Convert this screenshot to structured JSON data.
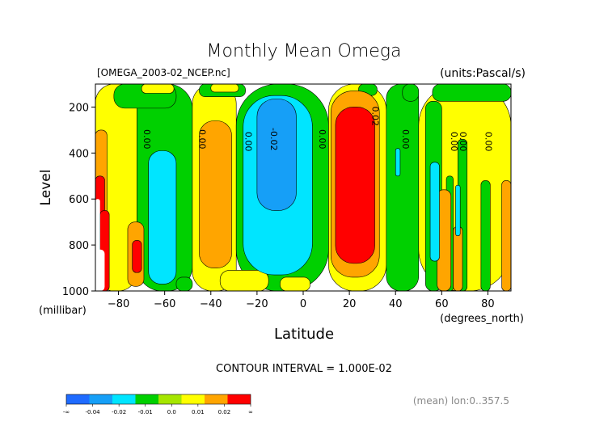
{
  "chart_data": {
    "type": "heatmap",
    "title": "Monthly Mean Omega",
    "subtitle_left": "[OMEGA_2003-02_NCEP.nc]",
    "subtitle_right": "(units:Pascal/s)",
    "xlabel": "Latitude",
    "x_unit_label": "(degrees_north)",
    "ylabel": "Level",
    "y_unit_label": "(millibar)",
    "xlim": [
      -90,
      90
    ],
    "ylim": [
      1000,
      100
    ],
    "x_ticks": [
      -80,
      -60,
      -40,
      -20,
      0,
      20,
      40,
      60,
      80
    ],
    "y_ticks": [
      200,
      400,
      600,
      800,
      1000
    ],
    "contour_interval_text": "CONTOUR INTERVAL = 1.000E-02",
    "note": "(mean) lon:0..357.5",
    "legend": {
      "placement": "bottom-left",
      "colors": [
        "#1f6bff",
        "#169ff7",
        "#00e5ff",
        "#00d000",
        "#a6e600",
        "#ffff00",
        "#ffa500",
        "#ff0000"
      ],
      "labels": [
        "-∞",
        "-0.04",
        "-0.02",
        "-0.01",
        "0.0",
        "0.01",
        "0.02",
        "∞"
      ]
    },
    "contour_labels": [
      {
        "text": "0.00",
        "lat": -69,
        "lev": 340
      },
      {
        "text": "0.00",
        "lat": -45,
        "lev": 340
      },
      {
        "text": "0.00",
        "lat": -25,
        "lev": 350
      },
      {
        "text": "-0.02",
        "lat": -14,
        "lev": 340
      },
      {
        "text": "0.00",
        "lat": 7,
        "lev": 340
      },
      {
        "text": "0.02",
        "lat": 30,
        "lev": 240
      },
      {
        "text": "0.00",
        "lat": 43,
        "lev": 340
      },
      {
        "text": "0.00",
        "lat": 64,
        "lev": 350
      },
      {
        "text": "0.00",
        "lat": 68,
        "lev": 350
      },
      {
        "text": "0.00",
        "lat": 79,
        "lev": 350
      }
    ],
    "regions": [
      {
        "v": 0.005,
        "x": [
          -90,
          -72
        ],
        "y": [
          100,
          1000
        ]
      },
      {
        "v": -0.005,
        "x": [
          -72,
          -48
        ],
        "y": [
          100,
          1000
        ]
      },
      {
        "v": 0.005,
        "x": [
          -48,
          -29
        ],
        "y": [
          100,
          1000
        ]
      },
      {
        "v": -0.005,
        "x": [
          -29,
          11
        ],
        "y": [
          100,
          1000
        ]
      },
      {
        "v": 0.005,
        "x": [
          11,
          36
        ],
        "y": [
          100,
          1000
        ]
      },
      {
        "v": -0.005,
        "x": [
          36,
          50
        ],
        "y": [
          100,
          1000
        ]
      },
      {
        "v": 0.005,
        "x": [
          50,
          90
        ],
        "y": [
          100,
          1000
        ]
      },
      {
        "v": -0.005,
        "x": [
          -82,
          -55
        ],
        "y": [
          100,
          205
        ]
      },
      {
        "v": 0.005,
        "x": [
          -70,
          -56
        ],
        "y": [
          100,
          140
        ]
      },
      {
        "v": -0.005,
        "x": [
          -45,
          -25
        ],
        "y": [
          100,
          155
        ]
      },
      {
        "v": 0.005,
        "x": [
          -40,
          -28
        ],
        "y": [
          100,
          135
        ]
      },
      {
        "v": -0.005,
        "x": [
          24,
          32
        ],
        "y": [
          100,
          150
        ]
      },
      {
        "v": -0.005,
        "x": [
          43,
          50
        ],
        "y": [
          100,
          175
        ]
      },
      {
        "v": 0.005,
        "x": [
          -36,
          -15
        ],
        "y": [
          910,
          1000
        ]
      },
      {
        "v": 0.005,
        "x": [
          -10,
          3
        ],
        "y": [
          940,
          1000
        ]
      },
      {
        "v": -0.005,
        "x": [
          -55,
          -48
        ],
        "y": [
          940,
          1000
        ]
      },
      {
        "v": -0.005,
        "x": [
          56,
          90
        ],
        "y": [
          100,
          175
        ]
      },
      {
        "v": -0.005,
        "x": [
          53,
          60
        ],
        "y": [
          175,
          1000
        ]
      },
      {
        "v": -0.005,
        "x": [
          62,
          65
        ],
        "y": [
          500,
          1000
        ]
      },
      {
        "v": -0.005,
        "x": [
          67,
          71
        ],
        "y": [
          340,
          1000
        ]
      },
      {
        "v": -0.005,
        "x": [
          77,
          81
        ],
        "y": [
          520,
          1000
        ]
      },
      {
        "v": 0.015,
        "x": [
          -90,
          -85
        ],
        "y": [
          300,
          1000
        ]
      },
      {
        "v": 0.015,
        "x": [
          -76,
          -69
        ],
        "y": [
          700,
          980
        ]
      },
      {
        "v": 0.015,
        "x": [
          -45,
          -31
        ],
        "y": [
          260,
          900
        ]
      },
      {
        "v": 0.015,
        "x": [
          12,
          33
        ],
        "y": [
          130,
          940
        ]
      },
      {
        "v": 0.015,
        "x": [
          58,
          64
        ],
        "y": [
          560,
          1000
        ]
      },
      {
        "v": 0.015,
        "x": [
          65,
          69
        ],
        "y": [
          720,
          1000
        ]
      },
      {
        "v": 0.015,
        "x": [
          86,
          90
        ],
        "y": [
          520,
          1000
        ]
      },
      {
        "v": -0.015,
        "x": [
          -67,
          -55
        ],
        "y": [
          390,
          970
        ]
      },
      {
        "v": -0.015,
        "x": [
          -26,
          4
        ],
        "y": [
          150,
          930
        ]
      },
      {
        "v": -0.015,
        "x": [
          55,
          59
        ],
        "y": [
          440,
          870
        ]
      },
      {
        "v": -0.015,
        "x": [
          40,
          42
        ],
        "y": [
          380,
          500
        ]
      },
      {
        "v": -0.015,
        "x": [
          66,
          68
        ],
        "y": [
          540,
          760
        ]
      },
      {
        "v": -0.025,
        "x": [
          -20,
          -3
        ],
        "y": [
          165,
          650
        ]
      },
      {
        "v": 0.025,
        "x": [
          14,
          31
        ],
        "y": [
          200,
          880
        ]
      },
      {
        "v": 0.025,
        "x": [
          -90,
          -86
        ],
        "y": [
          500,
          1000
        ]
      },
      {
        "v": 0.025,
        "x": [
          -74,
          -70
        ],
        "y": [
          780,
          920
        ]
      },
      {
        "v": 0.03,
        "x": [
          -88,
          -84
        ],
        "y": [
          650,
          1000
        ]
      },
      {
        "v": null,
        "x": [
          -90,
          -88
        ],
        "y": [
          600,
          1000
        ]
      },
      {
        "v": null,
        "x": [
          -90,
          -86
        ],
        "y": [
          820,
          1000
        ]
      }
    ]
  }
}
